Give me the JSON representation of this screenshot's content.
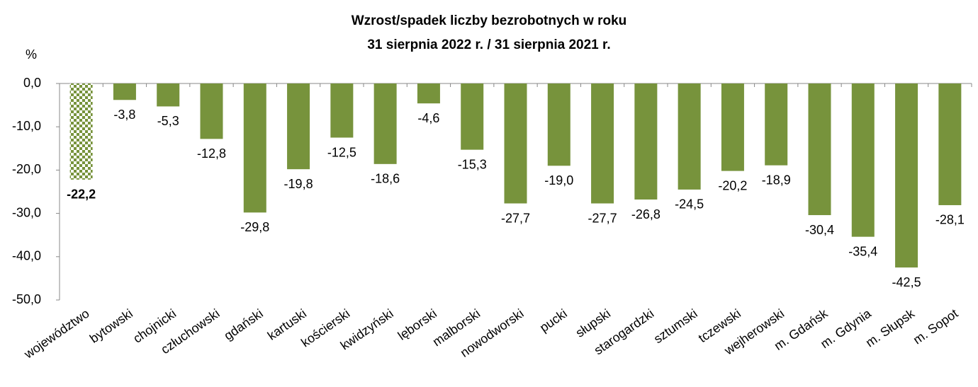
{
  "chart_data": {
    "type": "bar",
    "title": "Wzrost/spadek liczby bezrobotnych w roku",
    "subtitle": "31 sierpnia 2022 r. / 31 sierpnia 2021 r.",
    "y_axis_label": "%",
    "categories": [
      "województwo",
      "bytowski",
      "chojnicki",
      "człuchowski",
      "gdański",
      "kartuski",
      "kościerski",
      "kwidzyński",
      "lęborski",
      "malborski",
      "nowodworski",
      "pucki",
      "słupski",
      "starogardzki",
      "sztumski",
      "tczewski",
      "wejherowski",
      "m. Gdańsk",
      "m. Gdynia",
      "m. Słupsk",
      "m. Sopot"
    ],
    "values": [
      -22.2,
      -3.8,
      -5.3,
      -12.8,
      -29.8,
      -19.8,
      -12.5,
      -18.6,
      -4.6,
      -15.3,
      -27.7,
      -19.0,
      -27.7,
      -26.8,
      -24.5,
      -20.2,
      -18.9,
      -30.4,
      -35.4,
      -42.5,
      -28.1
    ],
    "value_labels": [
      "-22,2",
      "-3,8",
      "-5,3",
      "-12,8",
      "-29,8",
      "-19,8",
      "-12,5",
      "-18,6",
      "-4,6",
      "-15,3",
      "-27,7",
      "-19,0",
      "-27,7",
      "-26,8",
      "-24,5",
      "-20,2",
      "-18,9",
      "-30,4",
      "-35,4",
      "-42,5",
      "-28,1"
    ],
    "color": "#77933c",
    "highlight_category": "województwo",
    "ylim": [
      -50,
      0
    ],
    "yticks": [
      {
        "value": 0,
        "label": "0,0"
      },
      {
        "value": -10,
        "label": "-10,0"
      },
      {
        "value": -20,
        "label": "-20,0"
      },
      {
        "value": -30,
        "label": "-30,0"
      },
      {
        "value": -40,
        "label": "-40,0"
      },
      {
        "value": -50,
        "label": "-50,0"
      }
    ],
    "grid": false
  }
}
